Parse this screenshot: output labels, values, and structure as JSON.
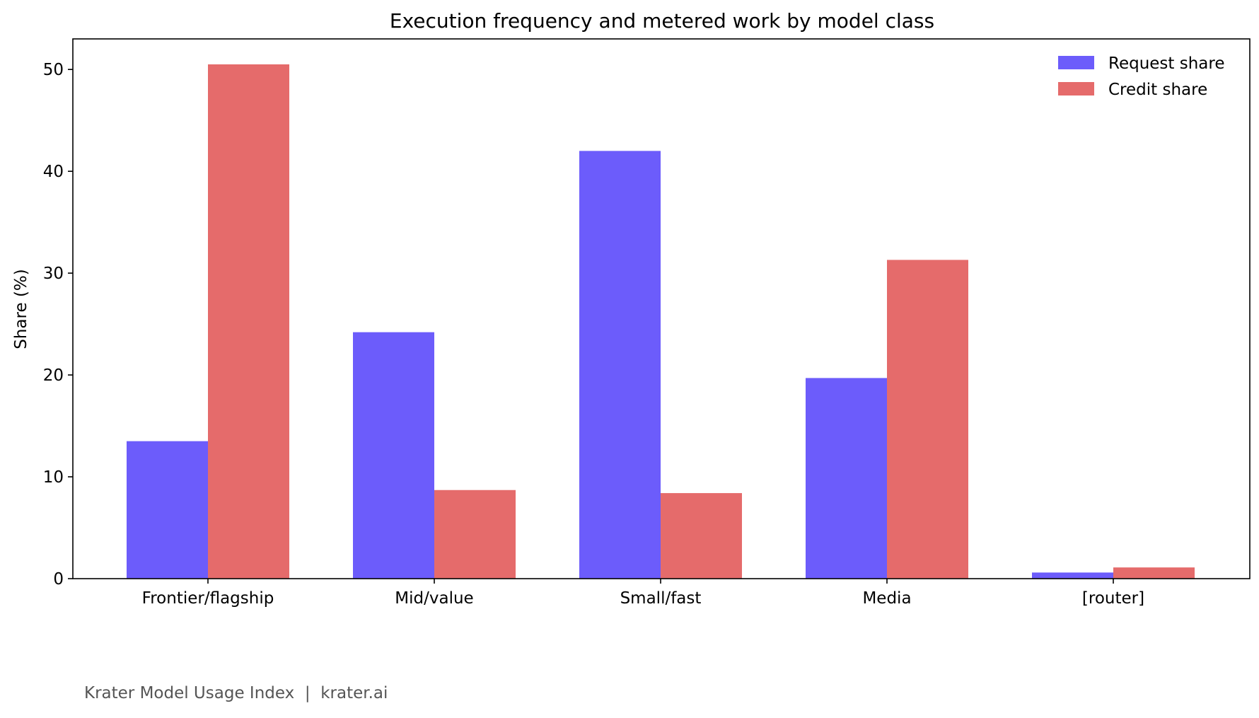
{
  "chart_data": {
    "type": "bar",
    "title": "Execution frequency and metered work by model class",
    "xlabel": "",
    "ylabel": "Share (%)",
    "categories": [
      "Frontier/flagship",
      "Mid/value",
      "Small/fast",
      "Media",
      "[router]"
    ],
    "series": [
      {
        "name": "Request share",
        "color": "#6c5cfb",
        "values": [
          13.5,
          24.2,
          42.0,
          19.7,
          0.6
        ]
      },
      {
        "name": "Credit share",
        "color": "#e56b6b",
        "values": [
          50.5,
          8.7,
          8.4,
          31.3,
          1.1
        ]
      }
    ],
    "ylim": [
      0,
      53
    ],
    "yticks": [
      "0",
      "10",
      "20",
      "30",
      "40",
      "50"
    ],
    "grid": false,
    "legend_position": "top-right"
  },
  "footer": {
    "text": "Krater Model Usage Index  |  krater.ai"
  }
}
